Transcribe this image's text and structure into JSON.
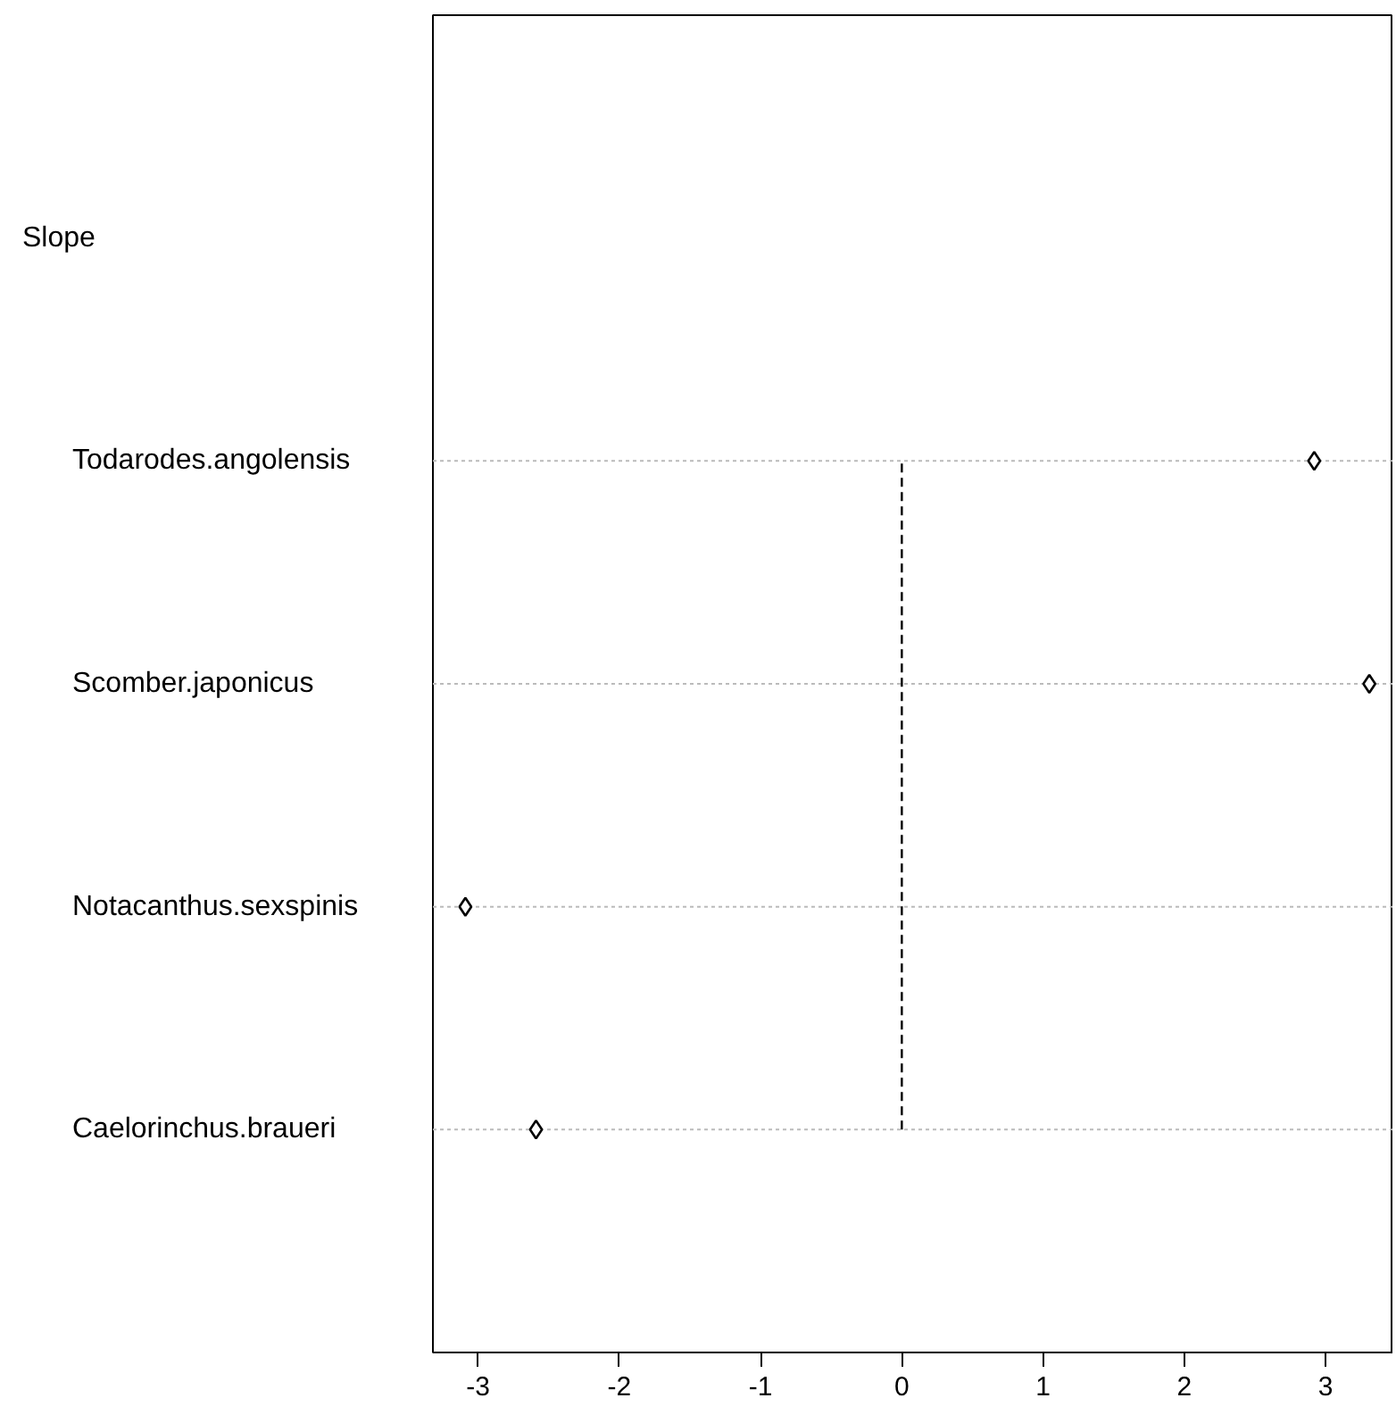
{
  "chart_data": {
    "type": "scatter",
    "categories": [
      "Todarodes.angolensis",
      "Scomber.japonicus",
      "Notacanthus.sexspinis",
      "Caelorinchus.braueri"
    ],
    "orientation": "horizontal",
    "values": [
      2.92,
      3.31,
      -3.09,
      -2.59
    ],
    "color": "#000000",
    "marker": "diamond",
    "xlim": [
      -3.32,
      3.48
    ],
    "xticks": [
      -3,
      -2,
      -1,
      0,
      1,
      2,
      3
    ],
    "grid": "y",
    "annotations": [
      "Slope"
    ],
    "ref_lines": [
      {
        "axis": "x",
        "value": 0,
        "line_style": "dashed",
        "color": "#000000"
      }
    ]
  }
}
